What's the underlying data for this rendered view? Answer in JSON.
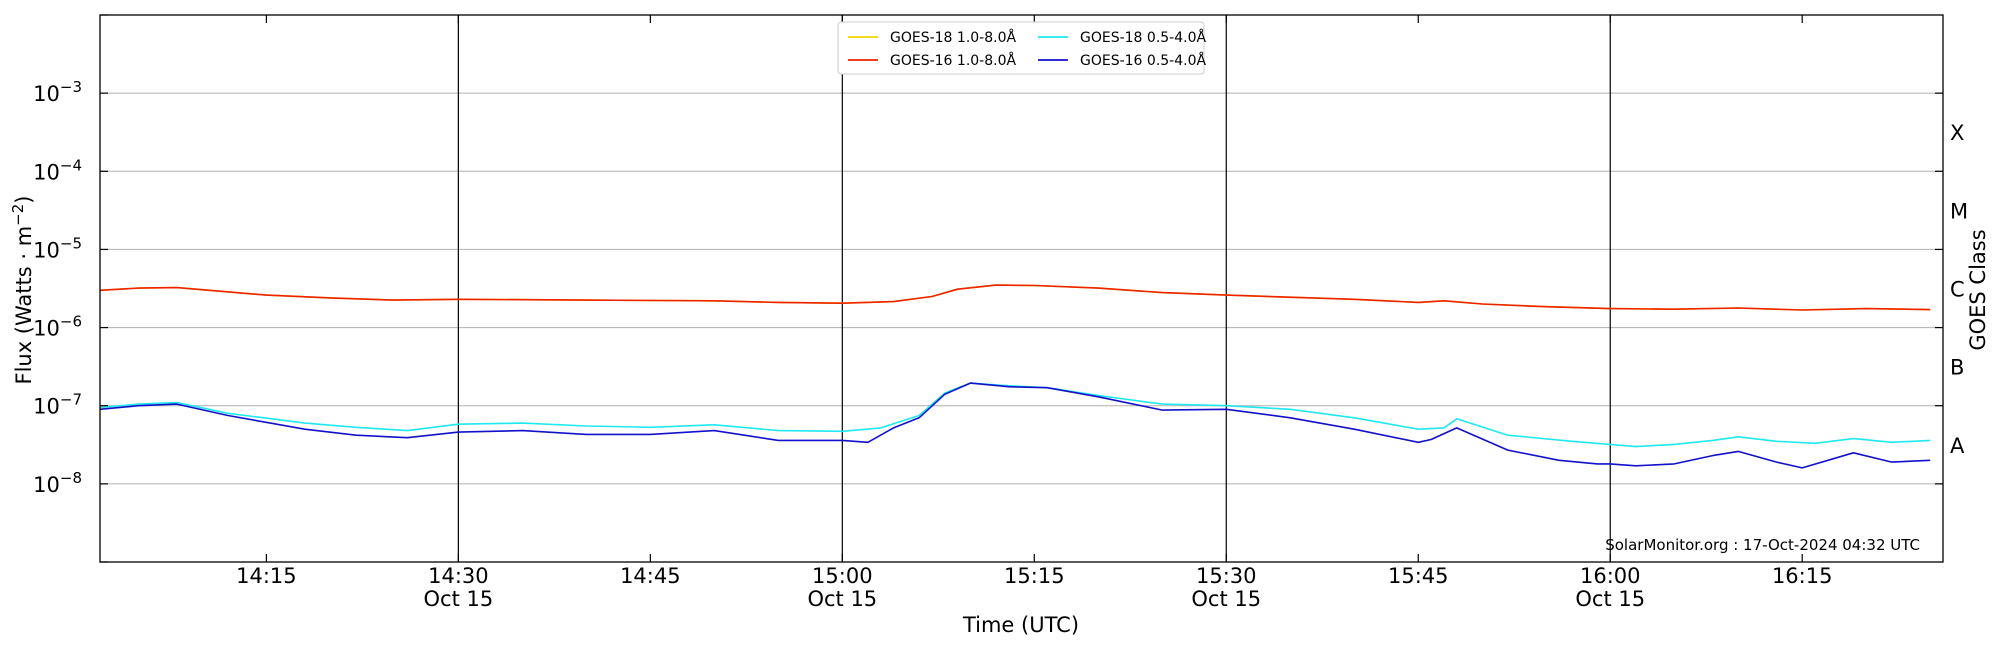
{
  "chart_data": {
    "type": "line",
    "title": "",
    "xlabel": "Time (UTC)",
    "ylabel": "Flux (Watts · m⁻²)",
    "ylabel_right": "GOES Class",
    "y_scale": "log",
    "ylim": [
      1e-09,
      0.01
    ],
    "xlim": [
      "2024-10-15 14:02",
      "2024-10-15 16:26"
    ],
    "x_ticks": [
      {
        "time": "14:15",
        "date": ""
      },
      {
        "time": "14:30",
        "date": "Oct 15"
      },
      {
        "time": "14:45",
        "date": ""
      },
      {
        "time": "15:00",
        "date": "Oct 15"
      },
      {
        "time": "15:15",
        "date": ""
      },
      {
        "time": "15:30",
        "date": "Oct 15"
      },
      {
        "time": "15:45",
        "date": ""
      },
      {
        "time": "16:00",
        "date": "Oct 15"
      },
      {
        "time": "16:15",
        "date": ""
      }
    ],
    "y_ticks": [
      {
        "exp": -8,
        "label": "10",
        "sup": "−8"
      },
      {
        "exp": -7,
        "label": "10",
        "sup": "−7"
      },
      {
        "exp": -6,
        "label": "10",
        "sup": "−6"
      },
      {
        "exp": -5,
        "label": "10",
        "sup": "−5"
      },
      {
        "exp": -4,
        "label": "10",
        "sup": "−4"
      },
      {
        "exp": -3,
        "label": "10",
        "sup": "−3"
      }
    ],
    "goes_classes": [
      {
        "label": "A",
        "exp": -7.5
      },
      {
        "label": "B",
        "exp": -6.5
      },
      {
        "label": "C",
        "exp": -5.5
      },
      {
        "label": "M",
        "exp": -4.5
      },
      {
        "label": "X",
        "exp": -3.5
      }
    ],
    "grid": true,
    "legend_position": "top-center",
    "annotation": "SolarMonitor.org : 17-Oct-2024 04:32 UTC",
    "series": [
      {
        "name": "GOES-18 1.0-8.0Å",
        "color": "#f2d600",
        "x": [
          "14:02",
          "14:05",
          "14:08",
          "14:15",
          "14:20",
          "14:25",
          "14:30",
          "14:40",
          "14:50",
          "14:55",
          "15:00",
          "15:04",
          "15:07",
          "15:09",
          "15:12",
          "15:15",
          "15:20",
          "15:25",
          "15:30",
          "15:40",
          "15:45",
          "15:47",
          "15:50",
          "15:55",
          "16:00",
          "16:05",
          "16:10",
          "16:15",
          "16:20",
          "16:25"
        ],
        "values": [
          3e-06,
          3.2e-06,
          3.25e-06,
          2.6e-06,
          2.4e-06,
          2.25e-06,
          2.3e-06,
          2.25e-06,
          2.2e-06,
          2.1e-06,
          2.05e-06,
          2.15e-06,
          2.5e-06,
          3.1e-06,
          3.5e-06,
          3.45e-06,
          3.2e-06,
          2.8e-06,
          2.6e-06,
          2.3e-06,
          2.1e-06,
          2.2e-06,
          2e-06,
          1.85e-06,
          1.75e-06,
          1.72e-06,
          1.78e-06,
          1.68e-06,
          1.75e-06,
          1.7e-06
        ]
      },
      {
        "name": "GOES-16 1.0-8.0Å",
        "color": "#ee2200",
        "x": [
          "14:02",
          "14:05",
          "14:08",
          "14:15",
          "14:20",
          "14:25",
          "14:30",
          "14:40",
          "14:50",
          "14:55",
          "15:00",
          "15:04",
          "15:07",
          "15:09",
          "15:12",
          "15:15",
          "15:20",
          "15:25",
          "15:30",
          "15:40",
          "15:45",
          "15:47",
          "15:50",
          "15:55",
          "16:00",
          "16:05",
          "16:10",
          "16:15",
          "16:20",
          "16:25"
        ],
        "values": [
          3e-06,
          3.2e-06,
          3.25e-06,
          2.6e-06,
          2.4e-06,
          2.25e-06,
          2.3e-06,
          2.25e-06,
          2.2e-06,
          2.1e-06,
          2.05e-06,
          2.15e-06,
          2.5e-06,
          3.1e-06,
          3.5e-06,
          3.45e-06,
          3.2e-06,
          2.8e-06,
          2.6e-06,
          2.3e-06,
          2.1e-06,
          2.2e-06,
          2e-06,
          1.85e-06,
          1.75e-06,
          1.72e-06,
          1.78e-06,
          1.68e-06,
          1.75e-06,
          1.7e-06
        ]
      },
      {
        "name": "GOES-18 0.5-4.0Å",
        "color": "#1ee8f0",
        "x": [
          "14:02",
          "14:05",
          "14:08",
          "14:12",
          "14:18",
          "14:22",
          "14:26",
          "14:30",
          "14:35",
          "14:40",
          "14:45",
          "14:50",
          "14:55",
          "15:00",
          "15:03",
          "15:06",
          "15:08",
          "15:10",
          "15:13",
          "15:16",
          "15:20",
          "15:25",
          "15:30",
          "15:35",
          "15:40",
          "15:45",
          "15:47",
          "15:48",
          "15:52",
          "15:57",
          "16:00",
          "16:02",
          "16:05",
          "16:08",
          "16:10",
          "16:13",
          "16:16",
          "16:19",
          "16:22",
          "16:25"
        ],
        "values": [
          9.5e-08,
          1.05e-07,
          1.1e-07,
          8e-08,
          6e-08,
          5.3e-08,
          4.8e-08,
          5.8e-08,
          6e-08,
          5.5e-08,
          5.3e-08,
          5.7e-08,
          4.8e-08,
          4.7e-08,
          5.2e-08,
          7.5e-08,
          1.45e-07,
          1.95e-07,
          1.8e-07,
          1.7e-07,
          1.35e-07,
          1.05e-07,
          1e-07,
          9e-08,
          7e-08,
          5e-08,
          5.2e-08,
          6.8e-08,
          4.2e-08,
          3.5e-08,
          3.2e-08,
          3e-08,
          3.2e-08,
          3.6e-08,
          4e-08,
          3.5e-08,
          3.3e-08,
          3.8e-08,
          3.4e-08,
          3.6e-08
        ]
      },
      {
        "name": "GOES-16 0.5-4.0Å",
        "color": "#1111cc",
        "x": [
          "14:02",
          "14:05",
          "14:08",
          "14:12",
          "14:18",
          "14:22",
          "14:26",
          "14:30",
          "14:35",
          "14:40",
          "14:45",
          "14:50",
          "14:55",
          "15:00",
          "15:02",
          "15:04",
          "15:06",
          "15:08",
          "15:10",
          "15:13",
          "15:16",
          "15:20",
          "15:25",
          "15:30",
          "15:35",
          "15:40",
          "15:45",
          "15:46",
          "15:48",
          "15:52",
          "15:56",
          "15:59",
          "16:00",
          "16:02",
          "16:05",
          "16:08",
          "16:10",
          "16:13",
          "16:15",
          "16:19",
          "16:22",
          "16:25"
        ],
        "values": [
          9e-08,
          1e-07,
          1.05e-07,
          7.5e-08,
          5e-08,
          4.2e-08,
          3.9e-08,
          4.6e-08,
          4.8e-08,
          4.3e-08,
          4.3e-08,
          4.8e-08,
          3.6e-08,
          3.6e-08,
          3.4e-08,
          5.2e-08,
          7e-08,
          1.4e-07,
          1.95e-07,
          1.75e-07,
          1.7e-07,
          1.3e-07,
          8.8e-08,
          9e-08,
          7e-08,
          5e-08,
          3.4e-08,
          3.7e-08,
          5.2e-08,
          2.7e-08,
          2e-08,
          1.8e-08,
          1.8e-08,
          1.7e-08,
          1.8e-08,
          2.3e-08,
          2.6e-08,
          1.9e-08,
          1.6e-08,
          2.5e-08,
          1.9e-08,
          2e-08
        ]
      }
    ]
  }
}
